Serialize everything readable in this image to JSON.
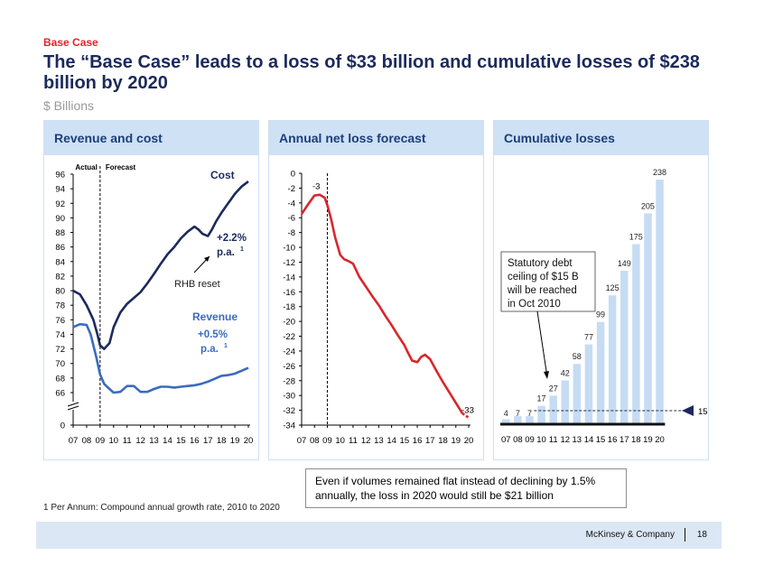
{
  "header": {
    "kicker": "Base Case",
    "title": "The “Base Case” leads to a loss of $33 billion and cumulative losses of $238 billion by 2020",
    "subtitle": "$ Billions"
  },
  "panels": {
    "revenue_cost": {
      "title": "Revenue and cost"
    },
    "net_loss": {
      "title": "Annual net loss forecast"
    },
    "cumulative": {
      "title": "Cumulative losses"
    }
  },
  "callout": {
    "text": "Even if volumes remained flat instead of declining by 1.5% annually, the loss in 2020 would still be $21 billion"
  },
  "footnote": "1 Per Annum: Compound annual growth rate, 2010 to 2020",
  "footer": {
    "brand": "McKinsey & Company",
    "page": "18"
  },
  "chart_data": [
    {
      "type": "line",
      "title": "Revenue and cost",
      "x_ticks": [
        "07",
        "08",
        "09",
        "10",
        "11",
        "12",
        "13",
        "14",
        "15",
        "16",
        "17",
        "18",
        "19",
        "20"
      ],
      "y_ticks": [
        "96",
        "94",
        "92",
        "90",
        "88",
        "86",
        "84",
        "82",
        "80",
        "78",
        "76",
        "74",
        "72",
        "70",
        "68",
        "66",
        "0"
      ],
      "ylim": [
        66,
        96
      ],
      "y_axis_break": true,
      "labels": {
        "actual": "Actual",
        "forecast": "Forecast"
      },
      "forecast_start": 2009,
      "series": [
        {
          "name": "Cost",
          "label": "Cost",
          "growth_label": "+2.2%",
          "growth_unit": "p.a.",
          "footnote_mark": "1",
          "color": "#1b2a5c",
          "x": [
            2007,
            2007.5,
            2008,
            2008.5,
            2008.8,
            2009,
            2009.3,
            2009.7,
            2010,
            2010.5,
            2011,
            2011.5,
            2012,
            2012.5,
            2013,
            2013.5,
            2014,
            2014.5,
            2015,
            2015.5,
            2016,
            2016.3,
            2016.6,
            2017,
            2017.3,
            2017.6,
            2018,
            2018.5,
            2019,
            2019.5,
            2020
          ],
          "values": [
            80,
            79.5,
            78,
            76,
            74,
            72.5,
            72,
            72.8,
            75,
            77,
            78.2,
            79,
            79.8,
            81,
            82.3,
            83.7,
            85,
            86,
            87.2,
            88.1,
            88.8,
            88.4,
            87.8,
            87.5,
            88.4,
            89.5,
            90.7,
            92,
            93.3,
            94.3,
            95
          ]
        },
        {
          "name": "Revenue",
          "label": "Revenue",
          "growth_label": "+0.5%",
          "growth_unit": "p.a.",
          "footnote_mark": "1",
          "color": "#3a6bbf",
          "x": [
            2007,
            2007.5,
            2008,
            2008.3,
            2008.7,
            2009,
            2009.3,
            2009.7,
            2010,
            2010.5,
            2011,
            2011.5,
            2012,
            2012.5,
            2013,
            2013.5,
            2014,
            2014.5,
            2015,
            2015.5,
            2016,
            2016.5,
            2017,
            2017.5,
            2018,
            2018.5,
            2019,
            2019.5,
            2020
          ],
          "values": [
            75,
            75.4,
            75.3,
            74,
            71,
            68.5,
            67.2,
            66.5,
            66,
            66.1,
            66.9,
            66.9,
            66.1,
            66.1,
            66.5,
            66.8,
            66.8,
            66.7,
            66.8,
            66.9,
            67,
            67.2,
            67.5,
            67.9,
            68.3,
            68.4,
            68.6,
            69,
            69.4
          ]
        }
      ],
      "annotations": [
        "RHB reset"
      ]
    },
    {
      "type": "line",
      "title": "Annual net loss forecast",
      "x_ticks": [
        "07",
        "08",
        "09",
        "10",
        "11",
        "12",
        "13",
        "14",
        "15",
        "16",
        "17",
        "18",
        "19",
        "20"
      ],
      "y_ticks": [
        "0",
        "-2",
        "-4",
        "-6",
        "-8",
        "-10",
        "-12",
        "-14",
        "-16",
        "-18",
        "-20",
        "-22",
        "-24",
        "-26",
        "-28",
        "-30",
        "-32",
        "-34"
      ],
      "ylim": [
        -34,
        0
      ],
      "series": [
        {
          "name": "Net loss",
          "color": "#d9262c",
          "x": [
            2007,
            2007.5,
            2008,
            2008.4,
            2008.8,
            2009,
            2009.3,
            2009.6,
            2010,
            2010.3,
            2010.7,
            2011,
            2011.5,
            2012,
            2012.5,
            2013,
            2013.5,
            2014,
            2014.5,
            2015,
            2015.3,
            2015.6,
            2016,
            2016.3,
            2016.6,
            2017,
            2017.5,
            2018,
            2018.5,
            2019,
            2019.5,
            2020
          ],
          "values": [
            -5.5,
            -4.2,
            -3,
            -2.9,
            -3.3,
            -4.3,
            -6.2,
            -8.6,
            -11,
            -11.6,
            -11.9,
            -12.2,
            -14,
            -15.3,
            -16.6,
            -17.8,
            -19.2,
            -20.5,
            -21.9,
            -23.2,
            -24.3,
            -25.3,
            -25.5,
            -24.8,
            -24.5,
            -25.1,
            -26.7,
            -28.2,
            -29.6,
            -31,
            -32.4,
            -33
          ]
        }
      ],
      "data_labels": {
        "first": "-3",
        "last": "-33"
      },
      "forecast_start": 2009
    },
    {
      "type": "bar",
      "title": "Cumulative losses",
      "categories": [
        "07",
        "08",
        "09",
        "10",
        "11",
        "12",
        "13",
        "14",
        "15",
        "16",
        "17",
        "18",
        "19",
        "20"
      ],
      "values": [
        4,
        7,
        7,
        17,
        27,
        42,
        58,
        77,
        99,
        125,
        149,
        175,
        205,
        238
      ],
      "value_labels": [
        "4",
        "7",
        "7",
        "17",
        "27",
        "42",
        "58",
        "77",
        "99",
        "125",
        "149",
        "175",
        "205",
        "238"
      ],
      "ylim": [
        0,
        250
      ],
      "reference_line": {
        "value": 15,
        "label": "15"
      },
      "annotation": "Statutory debt ceiling of $15 B will be reached in Oct 2010",
      "bar_color": "#c6dcf3"
    }
  ]
}
